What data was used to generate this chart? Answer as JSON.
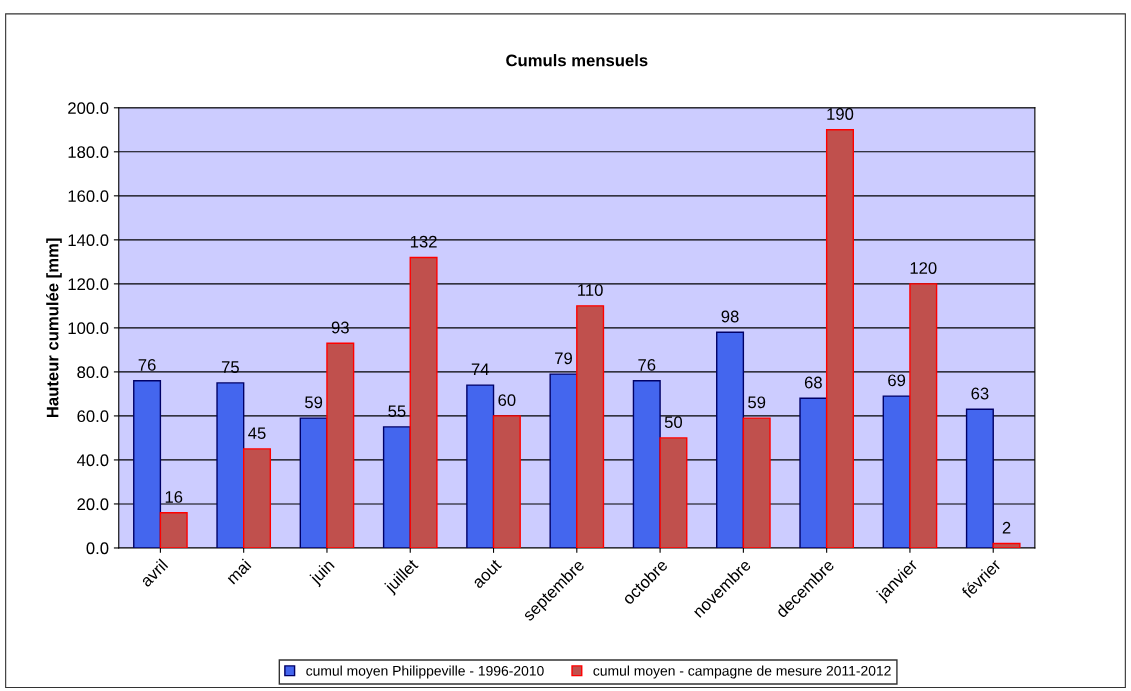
{
  "chart_data": {
    "type": "bar",
    "title": "Cumuls mensuels",
    "ylabel": "Hauteur cumulée [mm]",
    "categories": [
      "avril",
      "mai",
      "juin",
      "juillet",
      "aout",
      "septembre",
      "octobre",
      "novembre",
      "decembre",
      "janvier",
      "février"
    ],
    "series": [
      {
        "name": "cumul moyen Philippeville - 1996-2010",
        "color": "#4466ee",
        "values": [
          76,
          75,
          59,
          55,
          74,
          79,
          76,
          98,
          68,
          69,
          63
        ]
      },
      {
        "name": "cumul moyen - campagne de mesure 2011-2012",
        "color": "#c0504d",
        "values": [
          16,
          45,
          93,
          132,
          60,
          110,
          50,
          59,
          190,
          120,
          2
        ]
      }
    ],
    "ylim": [
      0,
      200
    ],
    "yticks": [
      {
        "value": 0,
        "label": "0.0"
      },
      {
        "value": 20,
        "label": "20.0"
      },
      {
        "value": 40,
        "label": "40.0"
      },
      {
        "value": 60,
        "label": "60.0"
      },
      {
        "value": 80,
        "label": "80.0"
      },
      {
        "value": 100,
        "label": "100.0"
      },
      {
        "value": 120,
        "label": "120.0"
      },
      {
        "value": 140,
        "label": "140.0"
      },
      {
        "value": 160,
        "label": "160.0"
      },
      {
        "value": 180,
        "label": "180.0"
      },
      {
        "value": 200,
        "label": "200.0"
      }
    ],
    "grid": "y",
    "legend": "bottom",
    "data_labels": true
  }
}
